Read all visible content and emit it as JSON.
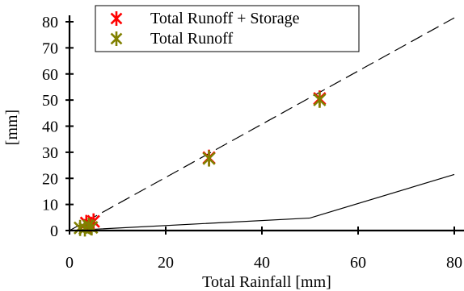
{
  "chart_data": {
    "type": "scatter",
    "xlabel": "Total Rainfall [mm]",
    "ylabel": "[mm]",
    "xlim": [
      0,
      80
    ],
    "ylim": [
      0,
      80
    ],
    "xticks": [
      0,
      20,
      40,
      60,
      80
    ],
    "yticks": [
      0,
      10,
      20,
      30,
      40,
      50,
      60,
      70,
      80
    ],
    "legend_position": "top-right",
    "series": [
      {
        "name": "Total Runoff + Storage",
        "color": "#ff0000",
        "marker": "asterisk",
        "x": [
          3.5,
          4.2,
          5.0,
          29.0,
          52.0
        ],
        "y": [
          2.9,
          2.0,
          3.5,
          27.9,
          50.6
        ]
      },
      {
        "name": "Total Runoff",
        "color": "#808000",
        "marker": "asterisk",
        "x": [
          2.2,
          3.2,
          4.0,
          4.6,
          29.0,
          52.0
        ],
        "y": [
          1.0,
          0.8,
          1.8,
          1.2,
          27.6,
          50.1
        ]
      }
    ],
    "lines": [
      {
        "style": "dashed",
        "color": "#000000",
        "x": [
          0,
          80
        ],
        "y": [
          0,
          81.5
        ]
      },
      {
        "style": "solid",
        "color": "#000000",
        "x": [
          0,
          50,
          80
        ],
        "y": [
          0,
          4.8,
          21.5
        ]
      }
    ]
  }
}
